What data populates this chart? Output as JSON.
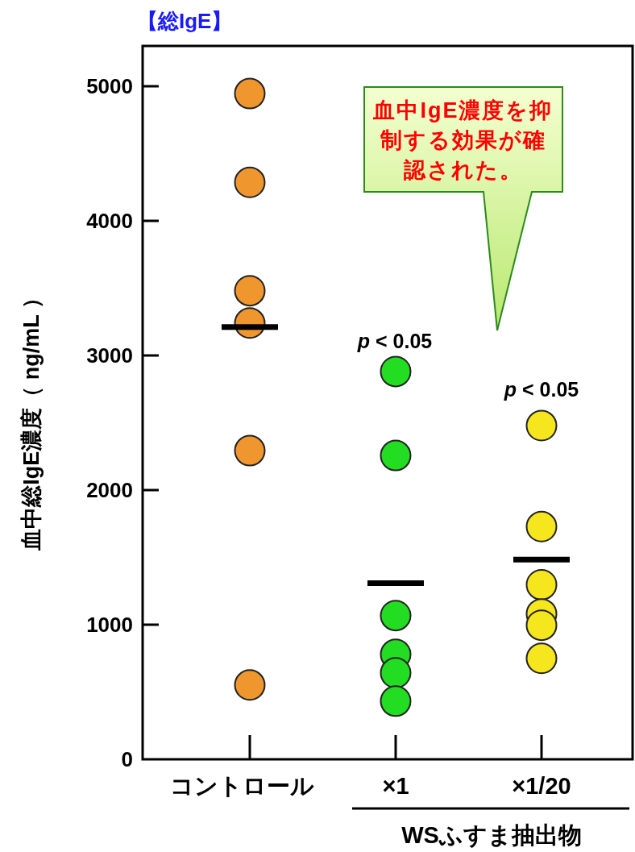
{
  "chart_data": {
    "type": "scatter",
    "title": "【総IgE】",
    "ylabel": "血中総IgE濃度（ ng/mL ）",
    "categories": [
      "コントロール",
      "×1",
      "×1/20"
    ],
    "ylim": [
      0,
      5300
    ],
    "yticks": [
      0,
      1000,
      2000,
      3000,
      4000,
      5000
    ],
    "grid": false,
    "marker": "circle",
    "series": [
      {
        "color": "#f0962e",
        "x": [
          "コントロール",
          "コントロール",
          "コントロール",
          "コントロール",
          "コントロール",
          "コントロール"
        ],
        "values": [
          4946,
          4286,
          3481,
          3241,
          2293,
          552
        ]
      },
      {
        "color": "#22dd22",
        "x": [
          "×1",
          "×1",
          "×1",
          "×1",
          "×1",
          "×1"
        ],
        "values": [
          2881,
          2257,
          1068,
          780,
          642,
          432
        ]
      },
      {
        "color": "#f5e61e",
        "x": [
          "×1/20",
          "×1/20",
          "×1/20",
          "×1/20",
          "×1/20",
          "×1/20"
        ],
        "values": [
          2479,
          1729,
          1297,
          1080,
          996,
          750
        ]
      }
    ],
    "ref_lines": [
      {
        "axis": "y",
        "value": 3211,
        "color": "#000000"
      },
      {
        "axis": "y",
        "value": 1308,
        "color": "#000000"
      },
      {
        "axis": "y",
        "value": 1483,
        "color": "#000000"
      }
    ],
    "annotations": [
      "p < 0.05",
      "p < 0.05",
      "血中IgE濃度を抑制する効果が確認された。",
      "WSふすま抽出物"
    ]
  }
}
